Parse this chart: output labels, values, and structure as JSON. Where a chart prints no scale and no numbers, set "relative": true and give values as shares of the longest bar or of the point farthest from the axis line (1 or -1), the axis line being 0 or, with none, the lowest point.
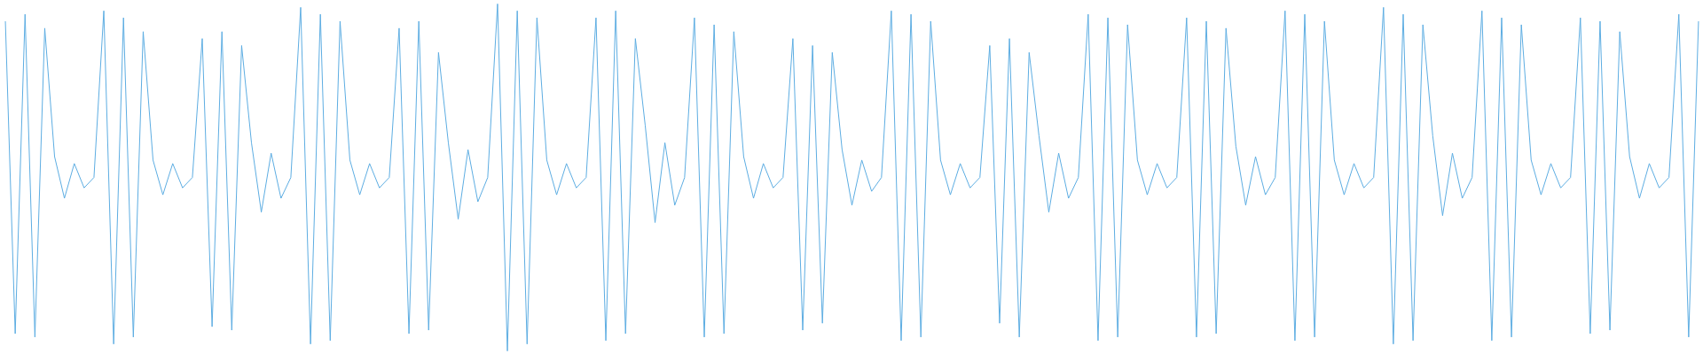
{
  "chart_data": {
    "type": "line",
    "relative": true,
    "grid": false,
    "marker": "none",
    "line_style": "solid",
    "categories": [
      null,
      null,
      null,
      null,
      null,
      null,
      null,
      null,
      null,
      null,
      null,
      null,
      null,
      null,
      null,
      null,
      null,
      null,
      null,
      null,
      null,
      null,
      null,
      null,
      null,
      null,
      null,
      null,
      null,
      null,
      null,
      null,
      null,
      null,
      null,
      null,
      null,
      null,
      null,
      null,
      null,
      null,
      null,
      null,
      null,
      null,
      null,
      null,
      null,
      null,
      null,
      null,
      null,
      null,
      null,
      null,
      null,
      null,
      null,
      null,
      null,
      null,
      null,
      null,
      null,
      null,
      null,
      null,
      null,
      null,
      null,
      null,
      null,
      null,
      null,
      null,
      null,
      null,
      null,
      null,
      null,
      null,
      null,
      null,
      null,
      null,
      null,
      null,
      null,
      null,
      null,
      null,
      null,
      null,
      null,
      null,
      null,
      null,
      null,
      null,
      null,
      null,
      null,
      null,
      null,
      null,
      null,
      null,
      null,
      null,
      null,
      null,
      null,
      null,
      null,
      null,
      null,
      null,
      null,
      null,
      null,
      null,
      null,
      null,
      null,
      null,
      null,
      null,
      null,
      null,
      null,
      null,
      null,
      null,
      null,
      null,
      null,
      null,
      null,
      null,
      null,
      null,
      null,
      null,
      null,
      null,
      null,
      null,
      null,
      null,
      null,
      null,
      null,
      null,
      null,
      null,
      null,
      null,
      null,
      null,
      null,
      null,
      null,
      null,
      null,
      null,
      null,
      null,
      null,
      null,
      null,
      null,
      null
    ],
    "series": [
      {
        "color": "#5dade2",
        "values": [
          0.95,
          0.05,
          0.97,
          0.04,
          0.93,
          0.56,
          0.44,
          0.54,
          0.47,
          0.5,
          0.98,
          0.02,
          0.96,
          0.04,
          0.92,
          0.55,
          0.45,
          0.54,
          0.47,
          0.5,
          0.9,
          0.07,
          0.92,
          0.06,
          0.88,
          0.6,
          0.4,
          0.57,
          0.44,
          0.5,
          0.99,
          0.02,
          0.97,
          0.03,
          0.95,
          0.55,
          0.45,
          0.54,
          0.47,
          0.5,
          0.93,
          0.05,
          0.95,
          0.06,
          0.86,
          0.6,
          0.38,
          0.58,
          0.43,
          0.5,
          1.0,
          0.0,
          0.98,
          0.02,
          0.96,
          0.55,
          0.45,
          0.54,
          0.47,
          0.5,
          0.96,
          0.03,
          0.98,
          0.05,
          0.9,
          0.65,
          0.37,
          0.6,
          0.42,
          0.5,
          0.96,
          0.04,
          0.94,
          0.05,
          0.92,
          0.56,
          0.44,
          0.54,
          0.47,
          0.5,
          0.9,
          0.06,
          0.88,
          0.08,
          0.86,
          0.58,
          0.42,
          0.55,
          0.46,
          0.5,
          0.98,
          0.03,
          0.97,
          0.04,
          0.95,
          0.55,
          0.45,
          0.54,
          0.47,
          0.5,
          0.88,
          0.08,
          0.9,
          0.04,
          0.86,
          0.62,
          0.4,
          0.57,
          0.44,
          0.5,
          0.97,
          0.03,
          0.96,
          0.04,
          0.94,
          0.55,
          0.45,
          0.54,
          0.47,
          0.5,
          0.96,
          0.04,
          0.95,
          0.05,
          0.93,
          0.59,
          0.42,
          0.56,
          0.45,
          0.5,
          0.98,
          0.03,
          0.97,
          0.04,
          0.95,
          0.55,
          0.45,
          0.54,
          0.47,
          0.5,
          0.99,
          0.02,
          0.97,
          0.03,
          0.94,
          0.62,
          0.39,
          0.57,
          0.44,
          0.5,
          0.98,
          0.03,
          0.96,
          0.04,
          0.94,
          0.55,
          0.45,
          0.54,
          0.47,
          0.5,
          0.96,
          0.05,
          0.95,
          0.06,
          0.92,
          0.56,
          0.44,
          0.54,
          0.47,
          0.5,
          0.97,
          0.04,
          0.95
        ]
      }
    ]
  }
}
